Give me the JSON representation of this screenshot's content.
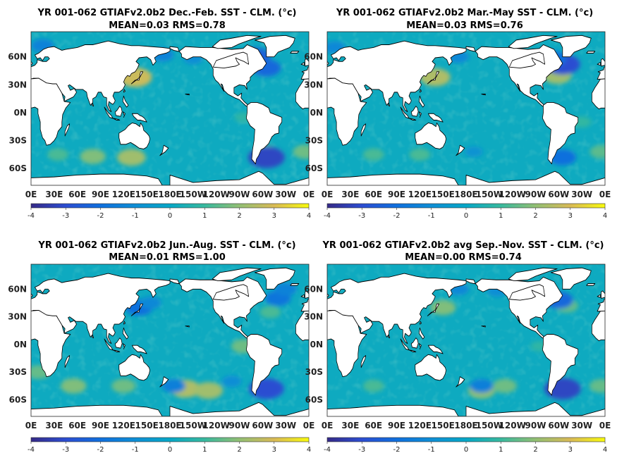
{
  "figure": {
    "colormap": "parula",
    "colorbar_ticks": [
      "-4",
      "-3",
      "-2",
      "-1",
      "0",
      "1",
      "2",
      "3",
      "4"
    ]
  },
  "chart_data": [
    {
      "type": "heatmap",
      "title": "YR 001-062 GTIAFv2.0b2  Dec.-Feb. SST - CLM. (°c)",
      "subtitle": "MEAN=0.03   RMS=0.78",
      "lat_labels": [
        "60N",
        "30N",
        "0N",
        "30S",
        "60S"
      ],
      "lon_labels": [
        "0E",
        "30E",
        "60E",
        "90E",
        "120E",
        "150E",
        "180E",
        "150W",
        "120W",
        "90W",
        "60W",
        "30W",
        "0E"
      ],
      "clim": [
        -4,
        4
      ],
      "mean": 0.03,
      "rms": 0.78,
      "warm_anomalies": [
        [
          135,
          38,
          2.8
        ],
        [
          130,
          -48,
          2.2
        ],
        [
          80,
          -47,
          1.8
        ],
        [
          35,
          -45,
          1.2
        ],
        [
          -5,
          -42,
          1.6
        ],
        [
          -58,
          -42,
          1.6
        ],
        [
          -85,
          -5,
          0.8
        ]
      ],
      "cold_anomalies": [
        [
          -70,
          60,
          -2.5
        ],
        [
          -55,
          48,
          -2.2
        ],
        [
          -55,
          -48,
          -3.2
        ],
        [
          15,
          72,
          -1.4
        ],
        [
          170,
          62,
          -1.4
        ],
        [
          -150,
          58,
          -1.0
        ]
      ]
    },
    {
      "type": "heatmap",
      "title": "YR 001-062 GTIAFv2.0b2 Mar.-May SST - CLM. (°c)",
      "subtitle": "MEAN=0.03   RMS=0.76",
      "lat_labels": [
        "60N",
        "30N",
        "0N",
        "30S",
        "60S"
      ],
      "lon_labels": [
        "0E",
        "30E",
        "60E",
        "90E",
        "120E",
        "150E",
        "180E",
        "150W",
        "120W",
        "90W",
        "60W",
        "30W",
        "0E"
      ],
      "clim": [
        -4,
        4
      ],
      "mean": 0.03,
      "rms": 0.76,
      "warm_anomalies": [
        [
          140,
          38,
          2.4
        ],
        [
          -62,
          40,
          2.2
        ],
        [
          -5,
          -42,
          1.4
        ],
        [
          120,
          -45,
          1.2
        ],
        [
          -30,
          -10,
          0.9
        ],
        [
          60,
          -45,
          1.2
        ]
      ],
      "cold_anomalies": [
        [
          -55,
          52,
          -3.0
        ],
        [
          -68,
          58,
          -2.0
        ],
        [
          -55,
          -48,
          -2.0
        ],
        [
          170,
          60,
          -1.2
        ],
        [
          10,
          70,
          -1.2
        ],
        [
          -170,
          -42,
          -0.8
        ]
      ]
    },
    {
      "type": "heatmap",
      "title": "YR 001-062 GTIAFv2.0b2 Jun.-Aug. SST - CLM. (°c)",
      "subtitle": "MEAN=0.01   RMS=1.00",
      "lat_labels": [
        "60N",
        "30N",
        "0N",
        "30S",
        "60S"
      ],
      "lon_labels": [
        "0E",
        "30E",
        "60E",
        "90E",
        "120E",
        "150E",
        "180E",
        "150W",
        "120W",
        "90W",
        "60W",
        "30W",
        "0E"
      ],
      "clim": [
        -4,
        4
      ],
      "mean": 0.01,
      "rms": 1.0,
      "warm_anomalies": [
        [
          -160,
          -48,
          2.4
        ],
        [
          -130,
          -50,
          2.2
        ],
        [
          -85,
          -2,
          1.6
        ],
        [
          10,
          -30,
          1.5
        ],
        [
          55,
          -45,
          1.8
        ],
        [
          120,
          -45,
          1.6
        ],
        [
          -50,
          35,
          1.2
        ]
      ],
      "cold_anomalies": [
        [
          -55,
          -48,
          -3.0
        ],
        [
          140,
          40,
          -2.0
        ],
        [
          -40,
          50,
          -1.8
        ],
        [
          -175,
          -45,
          -1.5
        ],
        [
          -30,
          60,
          -1.4
        ],
        [
          155,
          45,
          -1.2
        ],
        [
          -100,
          -40,
          -1.0
        ]
      ]
    },
    {
      "type": "heatmap",
      "title": "YR 001-062 GTIAFv2.0b2 avg Sep.-Nov. SST - CLM. (°c)",
      "subtitle": "MEAN=0.00   RMS=0.74",
      "lat_labels": [
        "60N",
        "30N",
        "0N",
        "30S",
        "60S"
      ],
      "lon_labels": [
        "0E",
        "30E",
        "60E",
        "90E",
        "120E",
        "150E",
        "180E",
        "150W",
        "120W",
        "90W",
        "60W",
        "30W",
        "0E"
      ],
      "clim": [
        -4,
        4
      ],
      "mean": 0.0,
      "rms": 0.74,
      "warm_anomalies": [
        [
          150,
          40,
          1.8
        ],
        [
          -160,
          -50,
          2.0
        ],
        [
          -130,
          -45,
          1.6
        ],
        [
          -5,
          -45,
          1.5
        ],
        [
          60,
          -45,
          1.2
        ],
        [
          -85,
          -2,
          0.8
        ],
        [
          -50,
          42,
          1.5
        ]
      ],
      "cold_anomalies": [
        [
          -55,
          -48,
          -3.2
        ],
        [
          -60,
          48,
          -2.2
        ],
        [
          -160,
          -45,
          -1.5
        ],
        [
          170,
          60,
          -1.2
        ],
        [
          -140,
          58,
          -1.0
        ]
      ]
    }
  ]
}
